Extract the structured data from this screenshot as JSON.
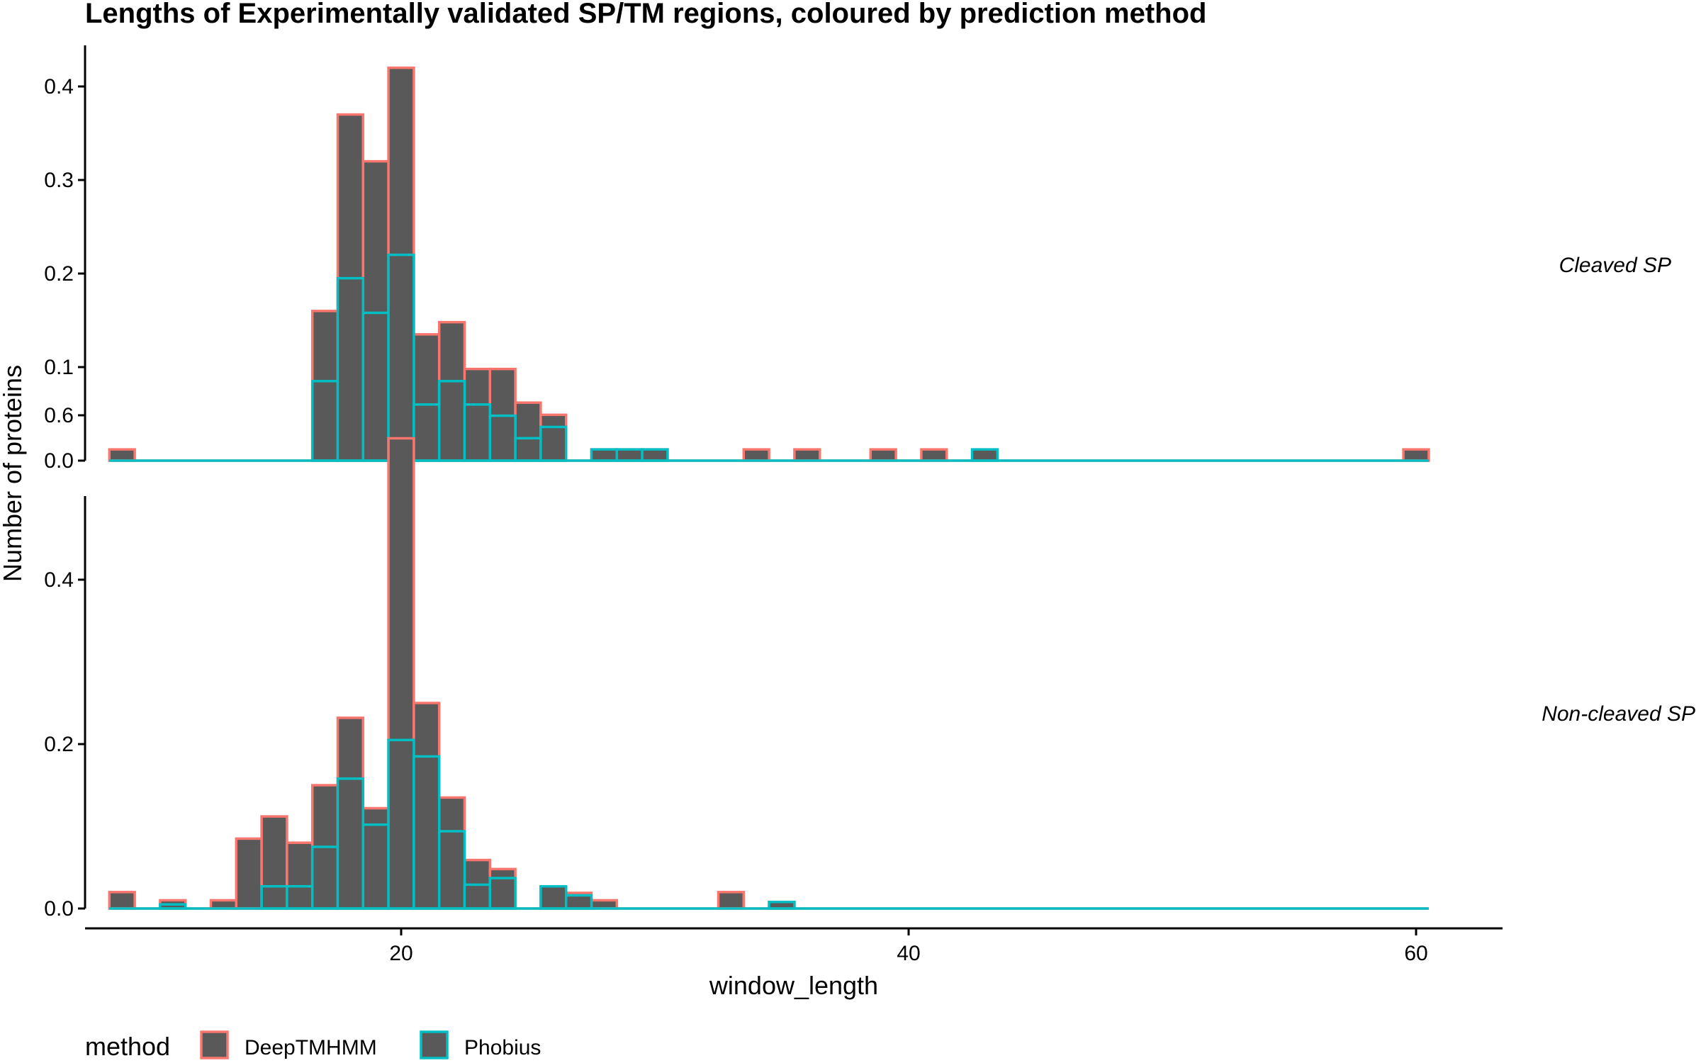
{
  "chart_data": {
    "type": "bar",
    "subtype": "faceted overlapping histogram",
    "title": "Lengths of Experimentally validated SP/TM regions, coloured by prediction method",
    "xlabel": "window_length",
    "ylabel": "Number of proteins",
    "xlim": [
      8,
      61
    ],
    "x_ticks": [
      20,
      40,
      60
    ],
    "bin_width": 1,
    "grid": false,
    "legend": {
      "title": "method",
      "position": "bottom-left",
      "entries": [
        {
          "name": "DeepTMHMM",
          "color": "#F8766D"
        },
        {
          "name": "Phobius",
          "color": "#00BFC4"
        }
      ]
    },
    "bar_fill": "#595959",
    "facets": [
      {
        "label": "Cleaved SP",
        "ylim": [
          0,
          0.42
        ],
        "y_ticks": [
          0.0,
          0.1,
          0.2,
          0.3,
          0.4
        ],
        "series": [
          {
            "name": "DeepTMHMM",
            "color": "#F8766D",
            "bins": [
              [
                9,
                0.012
              ],
              [
                17,
                0.16
              ],
              [
                18,
                0.37
              ],
              [
                19,
                0.32
              ],
              [
                20,
                0.42
              ],
              [
                21,
                0.135
              ],
              [
                22,
                0.148
              ],
              [
                23,
                0.098
              ],
              [
                24,
                0.098
              ],
              [
                25,
                0.062
              ],
              [
                26,
                0.049
              ],
              [
                28,
                0.012
              ],
              [
                29,
                0.012
              ],
              [
                30,
                0.012
              ],
              [
                34,
                0.012
              ],
              [
                36,
                0.012
              ],
              [
                39,
                0.012
              ],
              [
                41,
                0.012
              ],
              [
                60,
                0.012
              ]
            ]
          },
          {
            "name": "Phobius",
            "color": "#00BFC4",
            "bins": [
              [
                17,
                0.085
              ],
              [
                18,
                0.195
              ],
              [
                19,
                0.158
              ],
              [
                20,
                0.22
              ],
              [
                21,
                0.06
              ],
              [
                22,
                0.085
              ],
              [
                23,
                0.06
              ],
              [
                24,
                0.048
              ],
              [
                25,
                0.024
              ],
              [
                26,
                0.036
              ],
              [
                28,
                0.012
              ],
              [
                29,
                0.012
              ],
              [
                30,
                0.012
              ],
              [
                43,
                0.012
              ]
            ]
          }
        ]
      },
      {
        "label": "Non-cleaved SP",
        "ylim": [
          0,
          0.6
        ],
        "y_ticks": [
          0.0,
          0.2,
          0.4,
          0.6
        ],
        "series": [
          {
            "name": "DeepTMHMM",
            "color": "#F8766D",
            "bins": [
              [
                9,
                0.02
              ],
              [
                11,
                0.01
              ],
              [
                13,
                0.01
              ],
              [
                14,
                0.085
              ],
              [
                15,
                0.112
              ],
              [
                16,
                0.08
              ],
              [
                17,
                0.15
              ],
              [
                18,
                0.232
              ],
              [
                19,
                0.122
              ],
              [
                20,
                0.572
              ],
              [
                21,
                0.25
              ],
              [
                22,
                0.135
              ],
              [
                23,
                0.059
              ],
              [
                24,
                0.048
              ],
              [
                26,
                0.026
              ],
              [
                27,
                0.019
              ],
              [
                28,
                0.01
              ],
              [
                33,
                0.02
              ],
              [
                35,
                0.008
              ]
            ]
          },
          {
            "name": "Phobius",
            "color": "#00BFC4",
            "bins": [
              [
                11,
                0.005
              ],
              [
                15,
                0.027
              ],
              [
                16,
                0.027
              ],
              [
                17,
                0.075
              ],
              [
                18,
                0.158
              ],
              [
                19,
                0.102
              ],
              [
                20,
                0.205
              ],
              [
                21,
                0.185
              ],
              [
                22,
                0.094
              ],
              [
                23,
                0.029
              ],
              [
                24,
                0.037
              ],
              [
                26,
                0.027
              ],
              [
                27,
                0.016
              ],
              [
                35,
                0.008
              ]
            ]
          }
        ]
      }
    ]
  }
}
